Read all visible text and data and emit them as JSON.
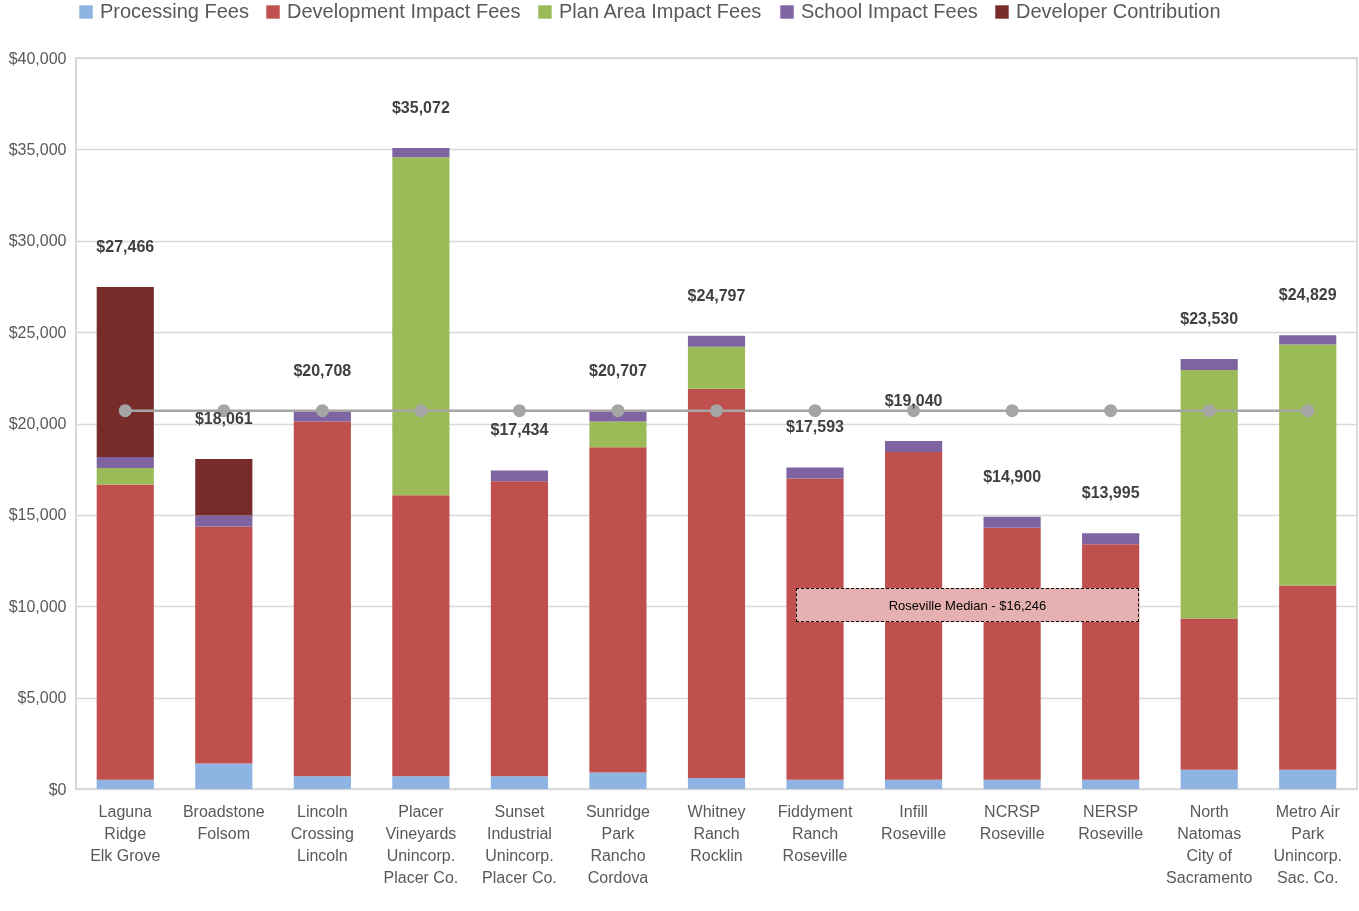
{
  "chart_data": {
    "type": "bar",
    "stacked": true,
    "categories": [
      "Laguna\nRidge\n\nElk Grove",
      "Broadstone\n\nFolsom",
      "Lincoln\nCrossing\n\nLincoln",
      "Placer\nVineyards\n\nUnincorp.\nPlacer Co.",
      "Sunset\nIndustrial\n\nUnincorp.\nPlacer Co.",
      "Sunridge\nPark\n\nRancho\nCordova",
      "Whitney\nRanch\n\nRocklin",
      "Fiddyment\nRanch\n\nRoseville",
      "Infill\n\nRoseville",
      "NCRSP\n\nRoseville",
      "NERSP\n\nRoseville",
      "North\nNatomas\n\nCity of\nSacramento",
      "Metro Air\nPark\n\nUnincorp.\nSac. Co."
    ],
    "series": [
      {
        "name": "Processing Fees",
        "color": "#8db4e2",
        "values": [
          500,
          1400,
          700,
          700,
          700,
          900,
          600,
          500,
          500,
          500,
          500,
          1050,
          1050
        ]
      },
      {
        "name": "Development Impact Fees",
        "color": "#c0504d",
        "values": [
          16166,
          12961,
          19408,
          15372,
          16134,
          17807,
          21297,
          16493,
          17940,
          13800,
          12895,
          8280,
          10079
        ]
      },
      {
        "name": "Plan Area Impact Fees",
        "color": "#9bbb59",
        "values": [
          900,
          0,
          0,
          18500,
          0,
          1400,
          2300,
          0,
          0,
          0,
          0,
          13600,
          13200
        ]
      },
      {
        "name": "School Impact Fees",
        "color": "#8064a2",
        "values": [
          600,
          600,
          600,
          500,
          600,
          600,
          600,
          600,
          600,
          600,
          600,
          600,
          500
        ]
      },
      {
        "name": "Developer Contribution",
        "color": "#772c2a",
        "values": [
          9300,
          3100,
          0,
          0,
          0,
          0,
          0,
          0,
          0,
          0,
          0,
          0,
          0
        ]
      },
      {
        "type": "line",
        "color": "#a5a5a5",
        "marker": "circle",
        "values": [
          20700,
          20700,
          20700,
          20700,
          20700,
          20700,
          20700,
          20700,
          20700,
          20700,
          20700,
          20700,
          20700
        ]
      }
    ],
    "totals": [
      "$27,466",
      "$18,061",
      "$20,708",
      "$35,072",
      "$17,434",
      "$20,707",
      "$24,797",
      "$17,593",
      "$19,040",
      "$14,900",
      "$13,995",
      "$23,530",
      "$24,829"
    ],
    "ylim": [
      0,
      40000
    ],
    "yticks": [
      {
        "value": 0,
        "label": "$0"
      },
      {
        "value": 5000,
        "label": "$5,000"
      },
      {
        "value": 10000,
        "label": "$10,000"
      },
      {
        "value": 15000,
        "label": "$15,000"
      },
      {
        "value": 20000,
        "label": "$20,000"
      },
      {
        "value": 25000,
        "label": "$25,000"
      },
      {
        "value": 30000,
        "label": "$30,000"
      },
      {
        "value": 35000,
        "label": "$35,000"
      },
      {
        "value": 40000,
        "label": "$40,000"
      }
    ],
    "grid": "y",
    "legend": "top",
    "annotations": [
      "Roseville Median - $16,246"
    ]
  }
}
